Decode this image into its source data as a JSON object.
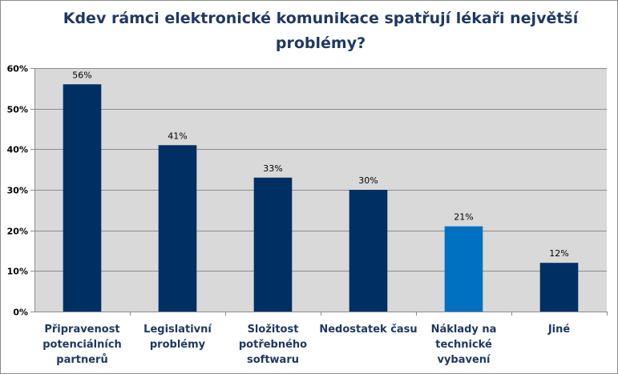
{
  "chart_data": {
    "type": "bar",
    "title": "Kdev rámci elektronické komunikace spatřují lékaři největší problémy?",
    "categories": [
      "Připravenost potenciálních partnerů",
      "Legislativní problémy",
      "Složitost potřebného softwaru",
      "Nedostatek času",
      "Náklady na technické vybavení",
      "Jiné"
    ],
    "category_lines": [
      [
        "Připravenost",
        "potenciálních",
        "partnerů"
      ],
      [
        "Legislativní",
        "problémy"
      ],
      [
        "Složitost",
        "potřebného",
        "softwaru"
      ],
      [
        "Nedostatek času"
      ],
      [
        "Náklady na",
        "technické",
        "vybavení"
      ],
      [
        "Jiné"
      ]
    ],
    "values": [
      56,
      41,
      33,
      30,
      21,
      12
    ],
    "value_labels": [
      "56%",
      "41%",
      "33%",
      "30%",
      "21%",
      "12%"
    ],
    "bar_colors": [
      "#002f63",
      "#002f63",
      "#002f63",
      "#002f63",
      "#0070c0",
      "#002f63"
    ],
    "y_ticks": [
      0,
      10,
      20,
      30,
      40,
      50,
      60
    ],
    "y_tick_labels": [
      "0%",
      "10%",
      "20%",
      "30%",
      "40%",
      "50%",
      "60%"
    ],
    "ylim": [
      0,
      60
    ],
    "xlabel": "",
    "ylabel": "",
    "grid": true,
    "legend": "none",
    "plot_background": "#d9d9d9",
    "title_color": "#1f3864",
    "label_color": "#1f3864"
  }
}
